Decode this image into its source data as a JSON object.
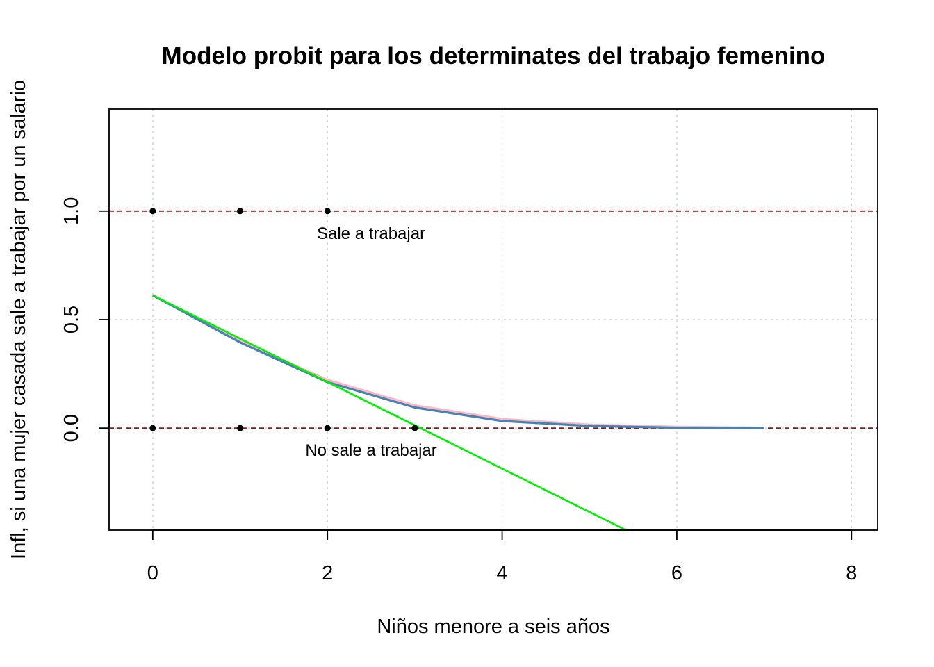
{
  "chart_data": {
    "type": "line",
    "title": "Modelo probit para los determinates del trabajo femenino",
    "xlabel": "Niños menore a seis años",
    "ylabel": "Infl, si una mujer casada sale a trabajar por un salario",
    "xlim": [
      -0.5,
      8.3
    ],
    "ylim": [
      -0.47,
      1.47
    ],
    "x_ticks": [
      0,
      2,
      4,
      6,
      8
    ],
    "y_ticks": [
      0.0,
      0.5,
      1.0
    ],
    "grid": true,
    "points": {
      "x": [
        0,
        1,
        2,
        0,
        1,
        2,
        3
      ],
      "y": [
        1,
        1,
        1,
        0,
        0,
        0,
        0
      ]
    },
    "reference_lines": [
      {
        "y": 1.0,
        "label": "Sale a trabajar",
        "label_x": 2.5
      },
      {
        "y": 0.0,
        "label": "No sale a trabajar",
        "label_x": 2.5
      }
    ],
    "series": [
      {
        "color": "#ffb6c1",
        "x": [
          0,
          1,
          2,
          3,
          4,
          5,
          6,
          7
        ],
        "y": [
          0.612,
          0.402,
          0.222,
          0.105,
          0.042,
          0.016,
          0.006,
          0.002
        ]
      },
      {
        "color": "#4682b4",
        "x": [
          0,
          1,
          2,
          3,
          4,
          5,
          6,
          7
        ],
        "y": [
          0.612,
          0.395,
          0.212,
          0.095,
          0.033,
          0.01,
          0.002,
          0.0005
        ]
      },
      {
        "color": "#00ee00",
        "x": [
          0,
          5.42
        ],
        "y": [
          0.612,
          -0.47
        ]
      }
    ],
    "colors": {
      "reference_line": "#8b1a1a",
      "grid": "#d3d3d3",
      "points": "#000000"
    }
  }
}
